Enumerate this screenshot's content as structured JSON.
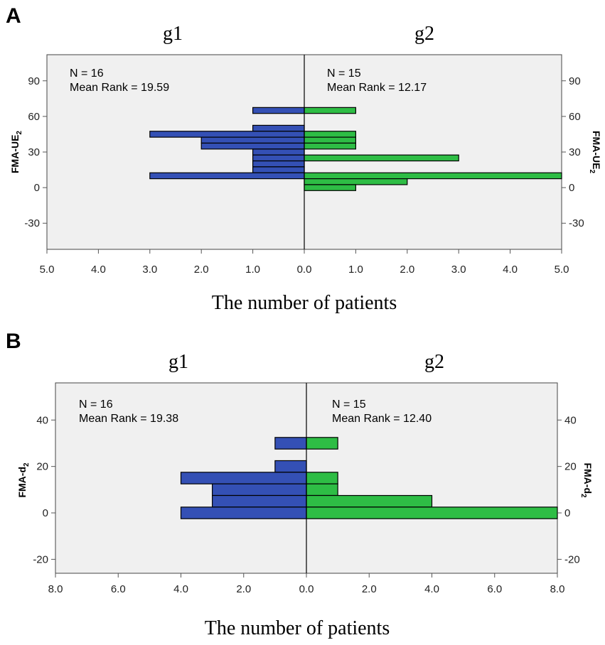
{
  "colors": {
    "left_bar": "#3450b5",
    "right_bar": "#2ebd45",
    "plot_bg": "#f0f0f0",
    "edge": "#000000"
  },
  "chart_data": [
    {
      "type": "bar",
      "panel": "A",
      "title": "",
      "group_labels": [
        "g1",
        "g2"
      ],
      "xlabel": "The number of patients",
      "ylabel_main": "FMA-UE",
      "ylabel_sub": "2",
      "yticks": [
        90,
        60,
        30,
        0,
        -30
      ],
      "ytick_labels": [
        "90",
        "60",
        "30",
        "0",
        "-30"
      ],
      "ylim": [
        -52,
        112
      ],
      "xmax": 5,
      "xticks_left": [
        "5.0",
        "4.0",
        "3.0",
        "2.0",
        "1.0"
      ],
      "xticks_center": "0.0",
      "xticks_right": [
        "1.0",
        "2.0",
        "3.0",
        "4.0",
        "5.0"
      ],
      "bin_width": 5,
      "annotations": {
        "left": {
          "n": "N = 16",
          "mean_rank": "Mean Rank = 19.59"
        },
        "right": {
          "n": "N = 15",
          "mean_rank": "Mean Rank = 12.17"
        }
      },
      "series": [
        {
          "name": "g1",
          "side": "left",
          "bins": [
            {
              "center": 65,
              "count": 1
            },
            {
              "center": 50,
              "count": 1
            },
            {
              "center": 45,
              "count": 3
            },
            {
              "center": 40,
              "count": 2
            },
            {
              "center": 35,
              "count": 2
            },
            {
              "center": 30,
              "count": 1
            },
            {
              "center": 25,
              "count": 1
            },
            {
              "center": 20,
              "count": 1
            },
            {
              "center": 15,
              "count": 1
            },
            {
              "center": 10,
              "count": 3
            }
          ]
        },
        {
          "name": "g2",
          "side": "right",
          "bins": [
            {
              "center": 65,
              "count": 1
            },
            {
              "center": 45,
              "count": 1
            },
            {
              "center": 40,
              "count": 1
            },
            {
              "center": 35,
              "count": 1
            },
            {
              "center": 25,
              "count": 3
            },
            {
              "center": 10,
              "count": 5
            },
            {
              "center": 5,
              "count": 2
            },
            {
              "center": 0,
              "count": 1
            }
          ]
        }
      ]
    },
    {
      "type": "bar",
      "panel": "B",
      "title": "",
      "group_labels": [
        "g1",
        "g2"
      ],
      "xlabel": "The number of patients",
      "ylabel_main": "FMA-d",
      "ylabel_sub": "2",
      "yticks": [
        40,
        20,
        0,
        -20
      ],
      "ytick_labels": [
        "40",
        "20",
        "0",
        "-20"
      ],
      "ylim": [
        -26,
        56
      ],
      "xmax": 8,
      "xticks_left": [
        "8.0",
        "6.0",
        "4.0",
        "2.0"
      ],
      "xticks_center": "0.0",
      "xticks_right": [
        "2.0",
        "4.0",
        "6.0",
        "8.0"
      ],
      "bin_width": 5,
      "annotations": {
        "left": {
          "n": "N = 16",
          "mean_rank": "Mean Rank = 19.38"
        },
        "right": {
          "n": "N = 15",
          "mean_rank": "Mean Rank = 12.40"
        }
      },
      "series": [
        {
          "name": "g1",
          "side": "left",
          "bins": [
            {
              "center": 30,
              "count": 1
            },
            {
              "center": 20,
              "count": 1
            },
            {
              "center": 15,
              "count": 4
            },
            {
              "center": 10,
              "count": 3
            },
            {
              "center": 5,
              "count": 3
            },
            {
              "center": 0,
              "count": 4
            }
          ]
        },
        {
          "name": "g2",
          "side": "right",
          "bins": [
            {
              "center": 30,
              "count": 1
            },
            {
              "center": 15,
              "count": 1
            },
            {
              "center": 10,
              "count": 1
            },
            {
              "center": 5,
              "count": 4
            },
            {
              "center": 0,
              "count": 8
            }
          ]
        }
      ]
    }
  ]
}
